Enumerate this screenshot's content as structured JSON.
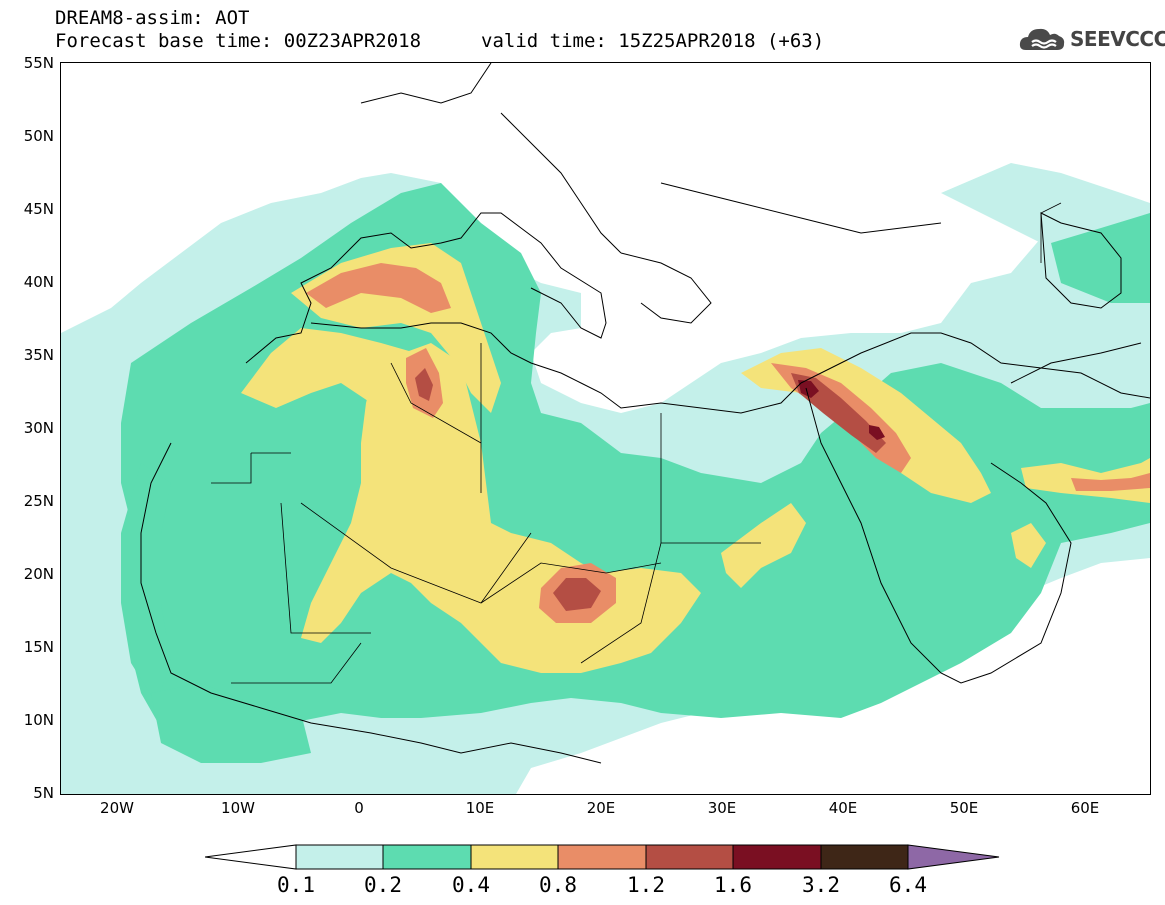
{
  "header": {
    "title": "DREAM8-assim: AOT",
    "base_time": "Forecast base time: 00Z23APR2018",
    "valid_time": "valid time: 15Z25APR2018 (+63)"
  },
  "logo": {
    "text": "SEEVCCC",
    "icon": "cloud-icon"
  },
  "map": {
    "lat_labels": [
      "55N",
      "50N",
      "45N",
      "40N",
      "35N",
      "30N",
      "25N",
      "20N",
      "15N",
      "10N",
      "5N"
    ],
    "lon_labels": [
      "20W",
      "10W",
      "0",
      "10E",
      "20E",
      "30E",
      "40E",
      "50E",
      "60E"
    ],
    "extent": {
      "lon": [
        -25,
        65
      ],
      "lat": [
        5,
        55
      ]
    }
  },
  "legend": {
    "levels": [
      "0.1",
      "0.2",
      "0.4",
      "0.8",
      "1.2",
      "1.6",
      "3.2",
      "6.4"
    ],
    "colors": {
      "below": "#ffffff",
      "0.1-0.2": "#c4f0ea",
      "0.2-0.4": "#5ddcb0",
      "0.4-0.8": "#f4e37a",
      "0.8-1.2": "#e98d67",
      "1.2-1.6": "#b44e44",
      "1.6-3.2": "#7a0f22",
      "3.2-6.4": "#3e2617",
      "above": "#8e68a6"
    }
  }
}
